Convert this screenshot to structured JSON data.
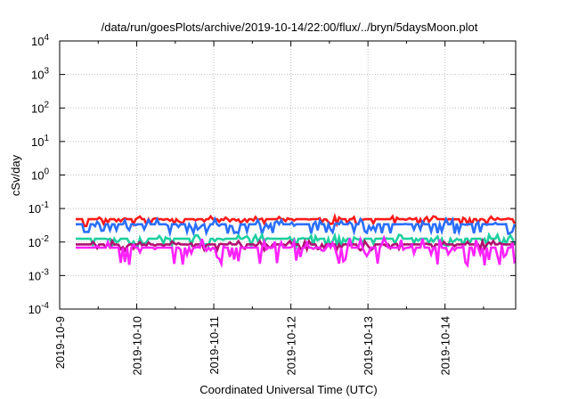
{
  "chart_data": {
    "type": "line",
    "title": "/data/run/goesPlots/archive/2019-10-14/22:00/flux/../bryn/5daysMoon.plot",
    "xlabel": "Coordinated Universal Time (UTC)",
    "ylabel": "cSv/day",
    "yscale": "log",
    "ylim": [
      0.0001,
      10000
    ],
    "y_ticks": [
      {
        "value": 0.0001,
        "base": "10",
        "exp": "-4"
      },
      {
        "value": 0.001,
        "base": "10",
        "exp": "-3"
      },
      {
        "value": 0.01,
        "base": "10",
        "exp": "-2"
      },
      {
        "value": 0.1,
        "base": "10",
        "exp": "-1"
      },
      {
        "value": 1,
        "base": "10",
        "exp": "0"
      },
      {
        "value": 10,
        "base": "10",
        "exp": "1"
      },
      {
        "value": 100,
        "base": "10",
        "exp": "2"
      },
      {
        "value": 1000,
        "base": "10",
        "exp": "3"
      },
      {
        "value": 10000,
        "base": "10",
        "exp": "4"
      }
    ],
    "xlim": [
      "2019-10-09",
      "2019-10-14T22:00"
    ],
    "x_ticks": [
      "2019-10-9",
      "2019-10-10",
      "2019-10-11",
      "2019-10-12",
      "2019-10-13",
      "2019-10-14"
    ],
    "grid": true,
    "series": [
      {
        "color": "#ff1a1a",
        "x_start": "2019-10-09T05:00",
        "base": 0.048,
        "noise": 0.25,
        "seed": 11,
        "steps": [
          {
            "from": "2019-10-09T07:30",
            "to": "2019-10-09T09:00",
            "value": 0.03
          }
        ]
      },
      {
        "color": "#2b6fff",
        "x_start": "2019-10-09T05:00",
        "base": 0.034,
        "noise": 0.45,
        "seed": 23,
        "steps": [
          {
            "from": "2019-10-09T07:30",
            "to": "2019-10-09T09:30",
            "value": 0.02
          }
        ]
      },
      {
        "color": "#1fcf9f",
        "x_start": "2019-10-09T05:00",
        "base": 0.0125,
        "noise": 0.35,
        "seed": 37,
        "steps": []
      },
      {
        "color": "#b01070",
        "x_start": "2019-10-09T05:00",
        "base": 0.0085,
        "noise": 0.3,
        "seed": 41,
        "steps": []
      },
      {
        "color": "#ff22ff",
        "x_start": "2019-10-09T05:00",
        "base": 0.0068,
        "noise": 0.85,
        "seed": 53,
        "steps": []
      }
    ]
  }
}
